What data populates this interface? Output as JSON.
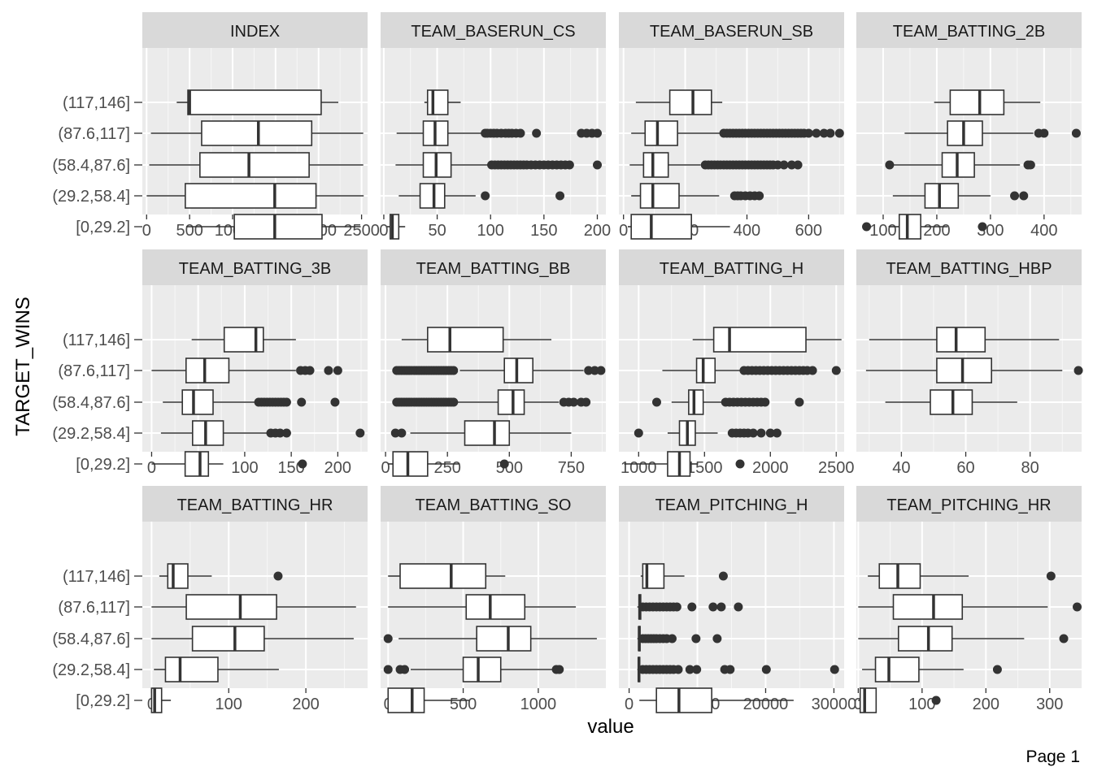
{
  "chart_data": {
    "type": "boxplot",
    "layout": "facet-grid 3x4",
    "xlabel": "value",
    "ylabel": "TARGET_WINS",
    "categories": [
      "(117,146]",
      "(87.6,117]",
      "(58.4,87.6]",
      "(29.2,58.4]",
      "[0,29.2]"
    ],
    "panels": [
      {
        "title": "INDEX",
        "xlim": [
          -50,
          2570
        ],
        "ticks": [
          0,
          500,
          1000,
          1500,
          2000,
          2500
        ],
        "boxes": [
          {
            "lo": 350,
            "q1": 480,
            "med": 500,
            "q3": 2030,
            "hi": 2230,
            "out": []
          },
          {
            "lo": 50,
            "q1": 640,
            "med": 1300,
            "q3": 1920,
            "hi": 2520,
            "out": []
          },
          {
            "lo": 30,
            "q1": 620,
            "med": 1190,
            "q3": 1890,
            "hi": 2520,
            "out": []
          },
          {
            "lo": 1,
            "q1": 450,
            "med": 1490,
            "q3": 1970,
            "hi": 2525,
            "out": []
          },
          {
            "lo": 460,
            "q1": 1020,
            "med": 1490,
            "q3": 2040,
            "hi": 2490,
            "out": []
          }
        ]
      },
      {
        "title": "TEAM_BASERUN_CS",
        "xlim": [
          -3,
          208
        ],
        "ticks": [
          0,
          50,
          100,
          150,
          200
        ],
        "boxes": [
          {
            "lo": 38,
            "q1": 41,
            "med": 46,
            "q3": 60,
            "hi": 72,
            "out": []
          },
          {
            "lo": 12,
            "q1": 37,
            "med": 48,
            "q3": 60,
            "hi": 92,
            "out": [
              95,
              97,
              100,
              103,
              106,
              110,
              114,
              117,
              120,
              124,
              128,
              143,
              185,
              190,
              195,
              200
            ]
          },
          {
            "lo": 11,
            "q1": 37,
            "med": 49,
            "q3": 63,
            "hi": 99,
            "out": [
              101,
              104,
              107,
              110,
              113,
              116,
              119,
              122,
              125,
              128,
              131,
              134,
              138,
              142,
              146,
              150,
              154,
              158,
              162,
              166,
              170,
              174,
              200
            ]
          },
          {
            "lo": 14,
            "q1": 34,
            "med": 47,
            "q3": 57,
            "hi": 86,
            "out": [
              95,
              165
            ]
          },
          {
            "lo": 3,
            "q1": 6,
            "med": 8,
            "q3": 14,
            "hi": 20,
            "out": []
          }
        ]
      },
      {
        "title": "TEAM_BASERUN_SB",
        "xlim": [
          -15,
          715
        ],
        "ticks": [
          0,
          200,
          400,
          600
        ],
        "boxes": [
          {
            "lo": 40,
            "q1": 150,
            "med": 225,
            "q3": 285,
            "hi": 320,
            "out": []
          },
          {
            "lo": 25,
            "q1": 70,
            "med": 110,
            "q3": 175,
            "hi": 315,
            "out": [
              325,
              335,
              345,
              355,
              365,
              375,
              385,
              395,
              405,
              415,
              425,
              435,
              445,
              455,
              465,
              475,
              485,
              495,
              505,
              515,
              525,
              535,
              545,
              555,
              565,
              575,
              585,
              600,
              625,
              650,
              670,
              700
            ]
          },
          {
            "lo": 20,
            "q1": 65,
            "med": 95,
            "q3": 145,
            "hi": 250,
            "out": [
              265,
              275,
              285,
              295,
              305,
              315,
              325,
              335,
              345,
              355,
              365,
              375,
              385,
              395,
              405,
              415,
              425,
              435,
              445,
              455,
              465,
              475,
              485,
              500,
              520,
              545,
              565
            ]
          },
          {
            "lo": 25,
            "q1": 55,
            "med": 95,
            "q3": 180,
            "hi": 310,
            "out": [
              360,
              370,
              380,
              395,
              410,
              425,
              440
            ]
          },
          {
            "lo": 14,
            "q1": 25,
            "med": 90,
            "q3": 220,
            "hi": 345,
            "out": []
          }
        ]
      },
      {
        "title": "TEAM_BATTING_2B",
        "xlim": [
          50,
          470
        ],
        "ticks": [
          100,
          200,
          300,
          400
        ],
        "boxes": [
          {
            "lo": 195,
            "q1": 225,
            "med": 280,
            "q3": 325,
            "hi": 393,
            "out": []
          },
          {
            "lo": 140,
            "q1": 220,
            "med": 250,
            "q3": 285,
            "hi": 380,
            "out": [
              390,
              400,
              460
            ]
          },
          {
            "lo": 115,
            "q1": 210,
            "med": 238,
            "q3": 270,
            "hi": 355,
            "out": [
              112,
              370,
              375
            ]
          },
          {
            "lo": 118,
            "q1": 178,
            "med": 205,
            "q3": 240,
            "hi": 300,
            "out": [
              345,
              362
            ]
          },
          {
            "lo": 110,
            "q1": 130,
            "med": 145,
            "q3": 170,
            "hi": 220,
            "out": [
              69,
              285
            ]
          }
        ]
      },
      {
        "title": "TEAM_BATTING_3B",
        "xlim": [
          -10,
          232
        ],
        "ticks": [
          0,
          50,
          100,
          150,
          200
        ],
        "boxes": [
          {
            "lo": 43,
            "q1": 78,
            "med": 112,
            "q3": 120,
            "hi": 155,
            "out": []
          },
          {
            "lo": 0,
            "q1": 37,
            "med": 57,
            "q3": 83,
            "hi": 155,
            "out": [
              160,
              165,
              170,
              190,
              200
            ]
          },
          {
            "lo": 12,
            "q1": 33,
            "med": 45,
            "q3": 66,
            "hi": 113,
            "out": [
              115,
              118,
              121,
              124,
              127,
              130,
              133,
              136,
              139,
              142,
              145,
              161,
              197
            ]
          },
          {
            "lo": 10,
            "q1": 44,
            "med": 58,
            "q3": 77,
            "hi": 125,
            "out": [
              128,
              133,
              138,
              145,
              224
            ]
          },
          {
            "lo": 0,
            "q1": 36,
            "med": 52,
            "q3": 61,
            "hi": 77,
            "out": [
              162
            ]
          }
        ]
      },
      {
        "title": "TEAM_BATTING_BB",
        "xlim": [
          -20,
          890
        ],
        "ticks": [
          0,
          250,
          500,
          750
        ],
        "boxes": [
          {
            "lo": 65,
            "q1": 170,
            "med": 260,
            "q3": 475,
            "hi": 670,
            "out": []
          },
          {
            "lo": 300,
            "q1": 480,
            "med": 530,
            "q3": 595,
            "hi": 800,
            "out": [
              45,
              55,
              65,
              75,
              85,
              95,
              105,
              115,
              125,
              135,
              145,
              155,
              165,
              175,
              185,
              195,
              205,
              215,
              225,
              235,
              245,
              255,
              265,
              275,
              820,
              845,
              870
            ]
          },
          {
            "lo": 290,
            "q1": 455,
            "med": 515,
            "q3": 560,
            "hi": 700,
            "out": [
              45,
              55,
              65,
              75,
              85,
              95,
              105,
              115,
              125,
              135,
              145,
              155,
              165,
              175,
              185,
              195,
              205,
              215,
              225,
              235,
              245,
              255,
              265,
              275,
              720,
              740,
              760,
              790,
              810
            ]
          },
          {
            "lo": 100,
            "q1": 320,
            "med": 440,
            "q3": 500,
            "hi": 750,
            "out": [
              40,
              65
            ]
          },
          {
            "lo": 10,
            "q1": 30,
            "med": 90,
            "q3": 170,
            "hi": 300,
            "out": [
              480
            ]
          }
        ]
      },
      {
        "title": "TEAM_BATTING_H",
        "xlim": [
          850,
          2560
        ],
        "ticks": [
          1000,
          1500,
          2000,
          2500
        ],
        "boxes": [
          {
            "lo": 1410,
            "q1": 1570,
            "med": 1690,
            "q3": 2270,
            "hi": 2540,
            "out": []
          },
          {
            "lo": 1180,
            "q1": 1440,
            "med": 1490,
            "q3": 1580,
            "hi": 1780,
            "out": [
              1800,
              1830,
              1860,
              1890,
              1920,
              1950,
              1980,
              2010,
              2040,
              2070,
              2100,
              2130,
              2160,
              2190,
              2220,
              2250,
              2280,
              2320,
              2500
            ]
          },
          {
            "lo": 1250,
            "q1": 1380,
            "med": 1420,
            "q3": 1490,
            "hi": 1640,
            "out": [
              1137,
              1660,
              1690,
              1720,
              1750,
              1780,
              1810,
              1840,
              1870,
              1900,
              1930,
              1960,
              2220
            ]
          },
          {
            "lo": 1220,
            "q1": 1310,
            "med": 1370,
            "q3": 1430,
            "hi": 1600,
            "out": [
              1000,
              1710,
              1740,
              1770,
              1800,
              1830,
              1870,
              1930,
              2000,
              2050
            ]
          },
          {
            "lo": 890,
            "q1": 1220,
            "med": 1310,
            "q3": 1390,
            "hi": 1450,
            "out": [
              1770
            ]
          }
        ]
      },
      {
        "title": "TEAM_BATTING_HBP",
        "xlim": [
          26,
          96
        ],
        "ticks": [
          40,
          60,
          80
        ],
        "boxes": [
          {
            "lo": 30,
            "q1": 51,
            "med": 57,
            "q3": 66,
            "hi": 89,
            "out": []
          },
          {
            "lo": 29,
            "q1": 51,
            "med": 59,
            "q3": 68,
            "hi": 90,
            "out": [
              95
            ]
          },
          {
            "lo": 35,
            "q1": 49,
            "med": 56,
            "q3": 62,
            "hi": 76,
            "out": []
          }
        ]
      },
      {
        "title": "TEAM_BATTING_HR",
        "xlim": [
          -12,
          280
        ],
        "ticks": [
          0,
          100,
          200
        ],
        "boxes": [
          {
            "lo": 10,
            "q1": 21,
            "med": 28,
            "q3": 47,
            "hi": 78,
            "out": [
              164
            ]
          },
          {
            "lo": 0,
            "q1": 45,
            "med": 115,
            "q3": 162,
            "hi": 265,
            "out": []
          },
          {
            "lo": 0,
            "q1": 53,
            "med": 108,
            "q3": 146,
            "hi": 262,
            "out": []
          },
          {
            "lo": 3,
            "q1": 18,
            "med": 37,
            "q3": 86,
            "hi": 165,
            "out": []
          },
          {
            "lo": 0,
            "q1": 0,
            "med": 4,
            "q3": 13,
            "hi": 25,
            "out": []
          }
        ]
      },
      {
        "title": "TEAM_BATTING_SO",
        "xlim": [
          -50,
          1450
        ],
        "ticks": [
          0,
          500,
          1000
        ],
        "boxes": [
          {
            "lo": 0,
            "q1": 80,
            "med": 420,
            "q3": 650,
            "hi": 780,
            "out": []
          },
          {
            "lo": 0,
            "q1": 520,
            "med": 680,
            "q3": 910,
            "hi": 1250,
            "out": []
          },
          {
            "lo": 70,
            "q1": 590,
            "med": 800,
            "q3": 950,
            "hi": 1390,
            "out": [
              0
            ]
          },
          {
            "lo": 150,
            "q1": 500,
            "med": 600,
            "q3": 750,
            "hi": 1100,
            "out": [
              0,
              80,
              110,
              1120,
              1140
            ]
          },
          {
            "lo": 0,
            "q1": 0,
            "med": 160,
            "q3": 240,
            "hi": 540,
            "out": []
          }
        ]
      },
      {
        "title": "TEAM_PITCHING_H",
        "xlim": [
          -1500,
          31500
        ],
        "ticks": [
          0,
          10000,
          20000,
          30000
        ],
        "boxes": [
          {
            "lo": 1700,
            "q1": 2000,
            "med": 2600,
            "q3": 5100,
            "hi": 8100,
            "out": [
              13800
            ]
          },
          {
            "lo": 1200,
            "q1": 1450,
            "med": 1550,
            "q3": 1700,
            "hi": 1800,
            "out": [
              2000,
              2500,
              3000,
              3500,
              4000,
              4500,
              5000,
              5500,
              6000,
              6500,
              7000,
              9200,
              12300,
              13500,
              16000
            ]
          },
          {
            "lo": 1200,
            "q1": 1400,
            "med": 1480,
            "q3": 1600,
            "hi": 1750,
            "out": [
              2000,
              2400,
              2800,
              3200,
              3600,
              4000,
              4500,
              5000,
              5500,
              6300,
              9800,
              12900
            ]
          },
          {
            "lo": 1200,
            "q1": 1350,
            "med": 1440,
            "q3": 1550,
            "hi": 1700,
            "out": [
              2000,
              2500,
              3000,
              3500,
              4000,
              4500,
              5000,
              5500,
              6000,
              6500,
              7200,
              8900,
              9900,
              14000,
              14800,
              20100,
              30100
            ]
          },
          {
            "lo": 1500,
            "q1": 4000,
            "med": 7300,
            "q3": 12100,
            "hi": 24100,
            "out": []
          }
        ]
      },
      {
        "title": "TEAM_PITCHING_HR",
        "xlim": [
          -3,
          350
        ],
        "ticks": [
          0,
          100,
          200,
          300
        ],
        "boxes": [
          {
            "lo": 15,
            "q1": 33,
            "med": 62,
            "q3": 97,
            "hi": 173,
            "out": [
              302
            ]
          },
          {
            "lo": 0,
            "q1": 55,
            "med": 118,
            "q3": 163,
            "hi": 297,
            "out": [
              343
            ]
          },
          {
            "lo": 0,
            "q1": 63,
            "med": 110,
            "q3": 147,
            "hi": 260,
            "out": [
              322
            ]
          },
          {
            "lo": 6,
            "q1": 27,
            "med": 48,
            "q3": 95,
            "hi": 165,
            "out": [
              218
            ]
          },
          {
            "lo": 0,
            "q1": 3,
            "med": 10,
            "q3": 28,
            "hi": 28,
            "out": [
              122
            ]
          }
        ]
      }
    ]
  },
  "footer": {
    "page_label": "Page 1"
  }
}
